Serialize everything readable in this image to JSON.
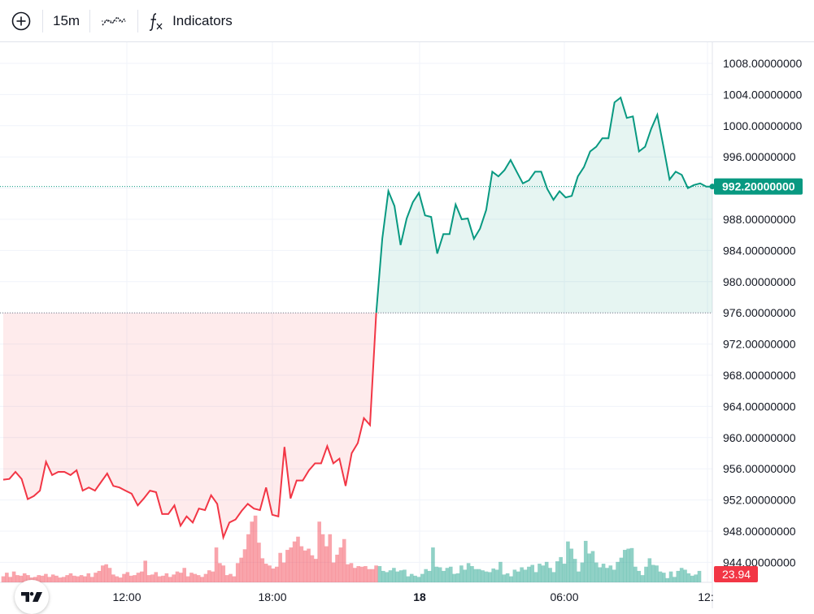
{
  "toolbar": {
    "add_symbol_icon": "plus-circle-icon",
    "interval": "15m",
    "chart_style_icon": "line-chart-style-icon",
    "indicators_icon": "fx-icon",
    "indicators_label": "Indicators"
  },
  "colors": {
    "up": "#089981",
    "down": "#f23645",
    "up_fill": "rgba(8,153,129,0.10)",
    "down_fill": "rgba(242,54,69,0.10)",
    "vol_up": "rgba(8,153,129,0.45)",
    "vol_down": "rgba(242,54,69,0.45)",
    "grid": "#f0f3fa"
  },
  "chart_data": {
    "type": "area",
    "price_scale": {
      "min": 942,
      "max": 1010,
      "ticks": [
        "1008.00000000",
        "1004.00000000",
        "1000.00000000",
        "996.00000000",
        "992.00000000",
        "988.00000000",
        "984.00000000",
        "980.00000000",
        "976.00000000",
        "972.00000000",
        "968.00000000",
        "964.00000000",
        "960.00000000",
        "956.00000000",
        "952.00000000",
        "948.00000000",
        "944.00000000"
      ]
    },
    "time_labels": [
      "12:00",
      "18:00",
      "18",
      "06:00",
      "12:"
    ],
    "baseline": 976,
    "last_price": 992.2,
    "last_price_label": "992.20000000",
    "volume_label": "23.94",
    "series": [
      {
        "name": "price",
        "values": [
          954.6,
          954.7,
          955.6,
          954.7,
          952.1,
          952.5,
          953.2,
          956.9,
          955.2,
          955.6,
          955.6,
          955.2,
          955.8,
          953.2,
          953.6,
          953.2,
          954.3,
          955.4,
          953.8,
          953.6,
          953.2,
          952.8,
          951.3,
          952.2,
          953.2,
          953,
          950.2,
          950.2,
          951.3,
          948.7,
          949.9,
          949.1,
          950.9,
          950.7,
          952.6,
          951.5,
          947.2,
          949.1,
          949.5,
          950.6,
          951.5,
          950.9,
          950.7,
          953.6,
          950.1,
          949.9,
          958.8,
          952.2,
          954.5,
          954.5,
          955.8,
          956.7,
          956.7,
          958.9,
          956.7,
          957.3,
          953.8,
          958,
          959.3,
          962.5,
          961.6,
          975.9,
          985.5,
          991.6,
          989.7,
          984.7,
          988.1,
          990.2,
          991.4,
          988.5,
          988.3,
          983.6,
          986.1,
          986.1,
          989.9,
          988,
          988.1,
          985.5,
          986.8,
          989.2,
          994.1,
          993.5,
          994.3,
          995.6,
          994.1,
          992.6,
          993,
          994.1,
          994.1,
          991.9,
          990.5,
          991.6,
          990.8,
          991,
          993.5,
          994.7,
          996.7,
          997.3,
          998.4,
          998.4,
          1003,
          1003.6,
          1001,
          1001.2,
          996.7,
          997.3,
          999.6,
          1001.4,
          997.3,
          993.1,
          994.1,
          993.7,
          992,
          992.4,
          992.6,
          992.2,
          992.2
        ]
      },
      {
        "name": "volume",
        "values": [
          1.0,
          1.6,
          0.9,
          1.8,
          1.2,
          1.1,
          1.5,
          1.2,
          0.8,
          0.9,
          1.2,
          1.1,
          1.4,
          0.9,
          1.3,
          1.1,
          0.8,
          0.9,
          1.2,
          1.5,
          1.1,
          1.0,
          1.2,
          1.0,
          1.5,
          0.9,
          1.6,
          1.9,
          2.8,
          3.0,
          2.4,
          1.3,
          1.0,
          0.8,
          1.4,
          1.7,
          1.1,
          1.2,
          1.6,
          1.8,
          3.6,
          1.2,
          1.3,
          1.7,
          1.0,
          1.1,
          1.5,
          0.9,
          1.3,
          1.8,
          1.6,
          2.4,
          1.0,
          1.6,
          1.4,
          1.2,
          0.9,
          1.4,
          2.0,
          1.8,
          5.8,
          3.2,
          2.8,
          1.2,
          1.4,
          1.0,
          3.2,
          4.1,
          5.5,
          8.0,
          10.1,
          11.1,
          6.6,
          4.0,
          3.1,
          2.8,
          2.3,
          2.6,
          4.9,
          3.3,
          5.4,
          5.8,
          6.8,
          7.6,
          6.0,
          5.3,
          5.6,
          4.5,
          3.9,
          10.1,
          8.0,
          6.0,
          8.0,
          3.3,
          4.6,
          5.8,
          7.2,
          3.0,
          3.2,
          2.4,
          2.7,
          2.6,
          2.7,
          2.2,
          2.2,
          2.8,
          2.7,
          1.9,
          1.7,
          2.0,
          2.4,
          1.8,
          2.0,
          2.1,
          1.0,
          1.4,
          1.1,
          0.9,
          1.4,
          2.2,
          1.9,
          5.8,
          2.6,
          2.5,
          1.9,
          2.4,
          2.6,
          1.4,
          1.5,
          2.8,
          2.1,
          3.2,
          2.7,
          2.2,
          2.2,
          2.0,
          1.8,
          1.7,
          2.3,
          2.1,
          3.4,
          1.3,
          1.5,
          1.0,
          2.1,
          1.8,
          2.5,
          2.1,
          2.6,
          2.9,
          1.7,
          3.1,
          2.8,
          3.4,
          2.4,
          1.7,
          3.5,
          4.2,
          3.1,
          6.8,
          5.6,
          3.9,
          1.8,
          3.3,
          6.9,
          4.8,
          5.2,
          3.3,
          2.5,
          3.1,
          2.4,
          2.8,
          2.1,
          3.4,
          4.1,
          5.4,
          5.6,
          5.7,
          2.6,
          1.9,
          1.2,
          2.6,
          4.0,
          2.9,
          2.8,
          1.8,
          1.6,
          0.7,
          1.8,
          0.9,
          1.9,
          2.4,
          2.1,
          1.5,
          1.1,
          1.3,
          1.9
        ]
      }
    ]
  }
}
